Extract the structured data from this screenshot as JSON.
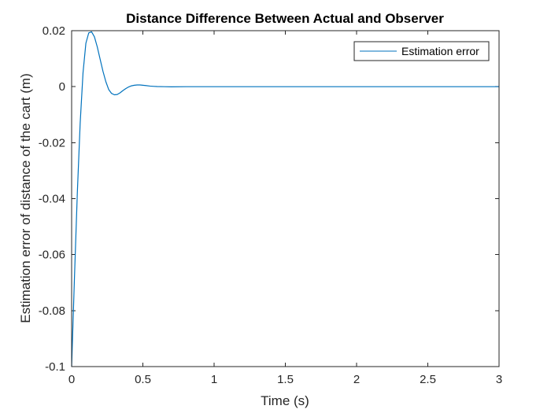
{
  "chart_data": {
    "type": "line",
    "title": "Distance Difference Between Actual and Observer",
    "xlabel": "Time (s)",
    "ylabel": "Estimation error of distance of the cart (m)",
    "xlim": [
      0,
      3
    ],
    "ylim": [
      -0.1,
      0.02
    ],
    "xticks": [
      0,
      0.5,
      1,
      1.5,
      2,
      2.5,
      3
    ],
    "xtick_labels": [
      "0",
      "0.5",
      "1",
      "1.5",
      "2",
      "2.5",
      "3"
    ],
    "yticks": [
      -0.1,
      -0.08,
      -0.06,
      -0.04,
      -0.02,
      0,
      0.02
    ],
    "ytick_labels": [
      "-0.1",
      "-0.08",
      "-0.06",
      "-0.04",
      "-0.02",
      "0",
      "0.02"
    ],
    "grid": false,
    "legend": {
      "position": "top-right",
      "entries": [
        "Estimation error"
      ]
    },
    "series": [
      {
        "name": "Estimation error",
        "color": "#0072BD",
        "x": [
          0,
          0.02,
          0.04,
          0.06,
          0.08,
          0.1,
          0.12,
          0.14,
          0.16,
          0.18,
          0.2,
          0.22,
          0.24,
          0.26,
          0.28,
          0.3,
          0.32,
          0.34,
          0.36,
          0.38,
          0.4,
          0.42,
          0.44,
          0.46,
          0.48,
          0.5,
          0.52,
          0.55,
          0.58,
          0.6,
          0.65,
          0.7,
          0.8,
          1,
          1.5,
          2,
          2.5,
          3
        ],
        "y": [
          -0.1,
          -0.068,
          -0.038,
          -0.013,
          0.005,
          0.0155,
          0.0192,
          0.0196,
          0.0178,
          0.0142,
          0.0098,
          0.0055,
          0.0018,
          -0.001,
          -0.0024,
          -0.0029,
          -0.0028,
          -0.0022,
          -0.0014,
          -0.0007,
          -0.0001,
          0.0003,
          0.0005,
          0.0006,
          0.0006,
          0.0005,
          0.0004,
          0.0002,
          0.0001,
          5e-05,
          0,
          -5e-05,
          0,
          0,
          0,
          0,
          0,
          0
        ]
      }
    ]
  }
}
